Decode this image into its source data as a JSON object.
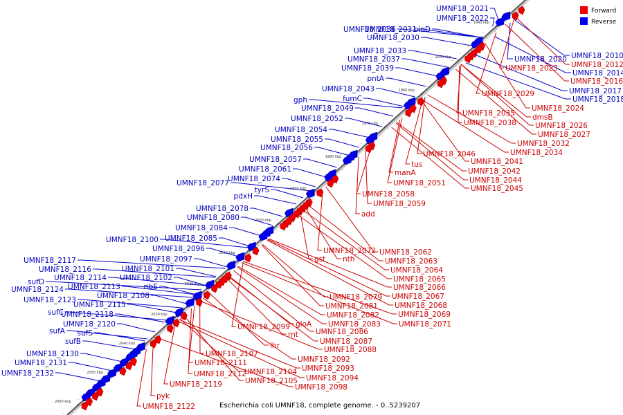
{
  "caption": "Escherichia coli UMNF18, complete genome. - 0..5239207",
  "legend": {
    "forward": {
      "label": "Forward",
      "color": "#ee0000"
    },
    "reverse": {
      "label": "Reverse",
      "color": "#0000ee"
    }
  },
  "ticks": [
    "1940 kbp",
    "1950 kbp",
    "1960 kbp",
    "1970 kbp",
    "1980 kbp",
    "1990 kbp",
    "2000 kbp",
    "2010 kbp",
    "2020 kbp",
    "2030 kbp",
    "2040 kbp",
    "2050 kbp",
    "2060 kbp"
  ],
  "reverse_labels": [
    "UMNF18_2021",
    "UMNF18_2022",
    "UMNF18_2036",
    "UMNF18_2031",
    "bioD",
    "UMNF18_2030",
    "UMNF18_2033",
    "UMNF18_2037",
    "UMNF18_2039",
    "pntA",
    "UMNF18_2043",
    "fumC",
    "gph",
    "UMNF18_2049",
    "UMNF18_2052",
    "UMNF18_2054",
    "UMNF18_2055",
    "UMNF18_2056",
    "UMNF18_2057",
    "UMNF18_2061",
    "UMNF18_2077",
    "UMNF18_2074",
    "tyrS",
    "pdxH",
    "UMNF18_2078",
    "UMNF18_2080",
    "UMNF18_2084",
    "UMNF18_2085",
    "UMNF18_2100",
    "UMNF18_2096",
    "UMNF18_2117",
    "UMNF18_2097",
    "UMNF18_2116",
    "UMNF18_2101",
    "UMNF18_2114",
    "UMNF18_2102",
    "sufD",
    "ribE",
    "UMNF18_2113",
    "UMNF18_2124",
    "UMNF18_2108",
    "UMNF18_2123",
    "UMNF18_2115",
    "sufC",
    "UMNF18_2118",
    "UMNF18_2120",
    "sufA",
    "sufS",
    "sufB",
    "UMNF18_2130",
    "UMNF18_2131",
    "UMNF18_2132",
    "UMNF18_2010",
    "UMNF18_2020",
    "UMNF18_2014",
    "UMNF18_2017",
    "UMNF18_2018"
  ],
  "forward_labels": [
    "UMNF18_2012",
    "UMNF18_2023",
    "UMNF18_2016",
    "UMNF18_2029",
    "UMNF18_2024",
    "UMNF18_2035",
    "dmsB",
    "UMNF18_2038",
    "UMNF18_2026",
    "UMNF18_2027",
    "UMNF18_2032",
    "UMNF18_2034",
    "UMNF18_2046",
    "UMNF18_2041",
    "tus",
    "UMNF18_2042",
    "manA",
    "UMNF18_2044",
    "UMNF18_2045",
    "UMNF18_2051",
    "UMNF18_2058",
    "UMNF18_2059",
    "add",
    "UMNF18_2072",
    "UMNF18_2062",
    "gst",
    "nth",
    "UMNF18_2063",
    "UMNF18_2064",
    "UMNF18_2065",
    "UMNF18_2066",
    "UMNF18_2079",
    "UMNF18_2067",
    "UMNF18_2081",
    "UMNF18_2068",
    "UMNF18_2082",
    "UMNF18_2069",
    "UMNF18_2083",
    "UMNF18_2071",
    "UMNF18_2099",
    "gloA",
    "lhr",
    "rnt",
    "UMNF18_2086",
    "UMNF18_2087",
    "UMNF18_2088",
    "UMNF18_2107",
    "UMNF18_2111",
    "UMNF18_2092",
    "UMNF18_2112",
    "UMNF18_2093",
    "UMNF18_2104",
    "UMNF18_2094",
    "UMNF18_2119",
    "UMNF18_2105",
    "UMNF18_2098",
    "pyk",
    "UMNF18_2122"
  ]
}
